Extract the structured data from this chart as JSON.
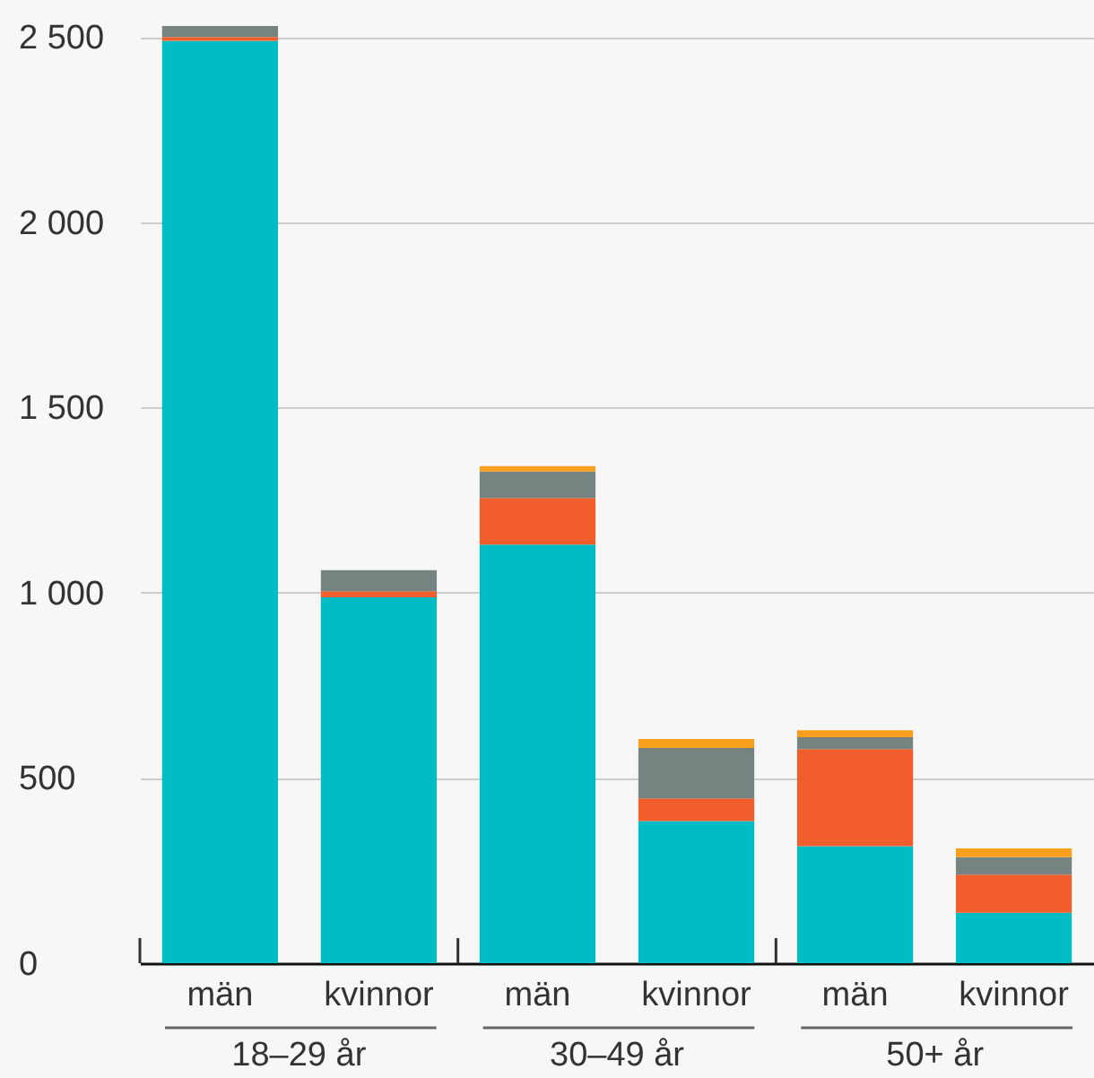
{
  "chart_data": {
    "type": "bar",
    "stacked": true,
    "categories": [
      "män",
      "kvinnor",
      "män",
      "kvinnor",
      "män",
      "kvinnor"
    ],
    "series": [
      {
        "color": "#00bcc4",
        "values": [
          2490,
          988,
          1130,
          384,
          316,
          136
        ]
      },
      {
        "color": "#f15e2b",
        "values": [
          10,
          16,
          126,
          61,
          262,
          103
        ]
      },
      {
        "color": "#758381",
        "values": [
          30,
          57,
          71,
          136,
          32,
          47
        ]
      },
      {
        "color": "#f8a01e",
        "values": [
          null,
          null,
          15,
          24,
          19,
          24
        ]
      }
    ],
    "ylim": [
      0,
      2600
    ],
    "yticks": [
      0,
      500,
      {
        "value": 1000,
        "label": "1 000"
      },
      {
        "value": 1500,
        "label": "1 500"
      },
      {
        "value": 2000,
        "label": "2 000"
      },
      {
        "value": 2500,
        "label": "2 500"
      }
    ],
    "grid": "y",
    "annotations": [
      "18–29 år",
      "30–49 år",
      "50+ år"
    ]
  }
}
